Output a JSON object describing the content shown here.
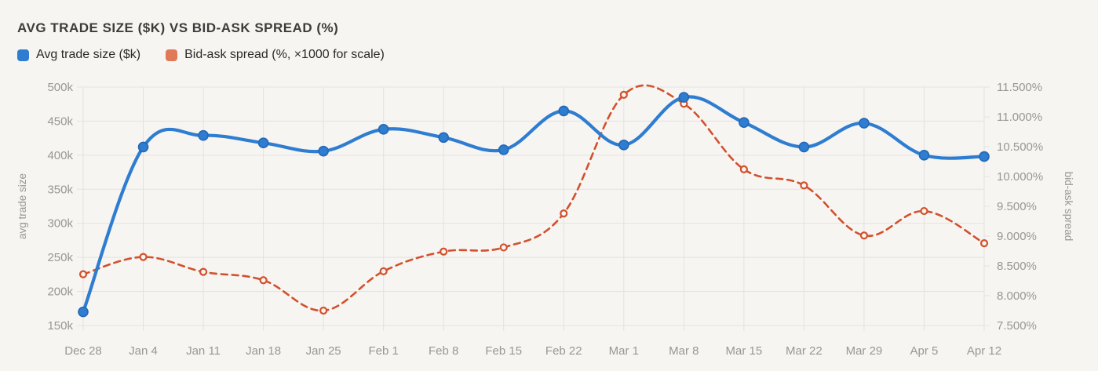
{
  "title": "AVG TRADE SIZE ($K) VS BID-ASK SPREAD (%)",
  "legend": [
    {
      "label": "Avg trade size ($k)",
      "color": "#2e7dd1"
    },
    {
      "label": "Bid-ask spread (%, ×1000 for scale)",
      "color": "#e0795a"
    }
  ],
  "colors": {
    "background": "#f7f5f2",
    "grid": "#e5e2dd",
    "tick_text": "#999693",
    "title_text": "#3d3c3a"
  },
  "chart_data": {
    "type": "line",
    "x": [
      "Dec 28",
      "Jan 4",
      "Jan 11",
      "Jan 18",
      "Jan 25",
      "Feb 1",
      "Feb 8",
      "Feb 15",
      "Feb 22",
      "Mar 1",
      "Mar 8",
      "Mar 15",
      "Mar 22",
      "Mar 29",
      "Apr 5",
      "Apr 12"
    ],
    "series": [
      {
        "name": "Avg trade size ($k)",
        "axis": "left",
        "style": "solid",
        "color": "#2e7dd1",
        "marker": "filled-circle",
        "values": [
          170,
          412,
          429,
          418,
          406,
          438,
          426,
          408,
          465,
          415,
          485,
          448,
          412,
          447,
          400,
          398
        ]
      },
      {
        "name": "Bid-ask spread (%, ×1000 for scale)",
        "axis": "right",
        "style": "dashed",
        "color": "#d2512d",
        "marker": "open-circle",
        "values": [
          8.36,
          8.65,
          8.4,
          8.26,
          7.75,
          8.41,
          8.74,
          8.81,
          9.38,
          11.37,
          11.22,
          10.12,
          9.85,
          9.01,
          9.42,
          8.88
        ]
      }
    ],
    "left_axis": {
      "title": "avg trade size",
      "min": 150,
      "max": 500,
      "step": 50,
      "tick_labels": [
        "500k",
        "450k",
        "400k",
        "350k",
        "300k",
        "250k",
        "200k",
        "150k"
      ]
    },
    "right_axis": {
      "title": "bid-ask spread",
      "min": 7.5,
      "max": 11.5,
      "step": 0.5,
      "tick_labels": [
        "11.500%",
        "11.000%",
        "10.500%",
        "10.000%",
        "9.500%",
        "9.000%",
        "8.500%",
        "8.000%",
        "7.500%"
      ]
    },
    "grid": true,
    "legend_position": "top-left"
  }
}
